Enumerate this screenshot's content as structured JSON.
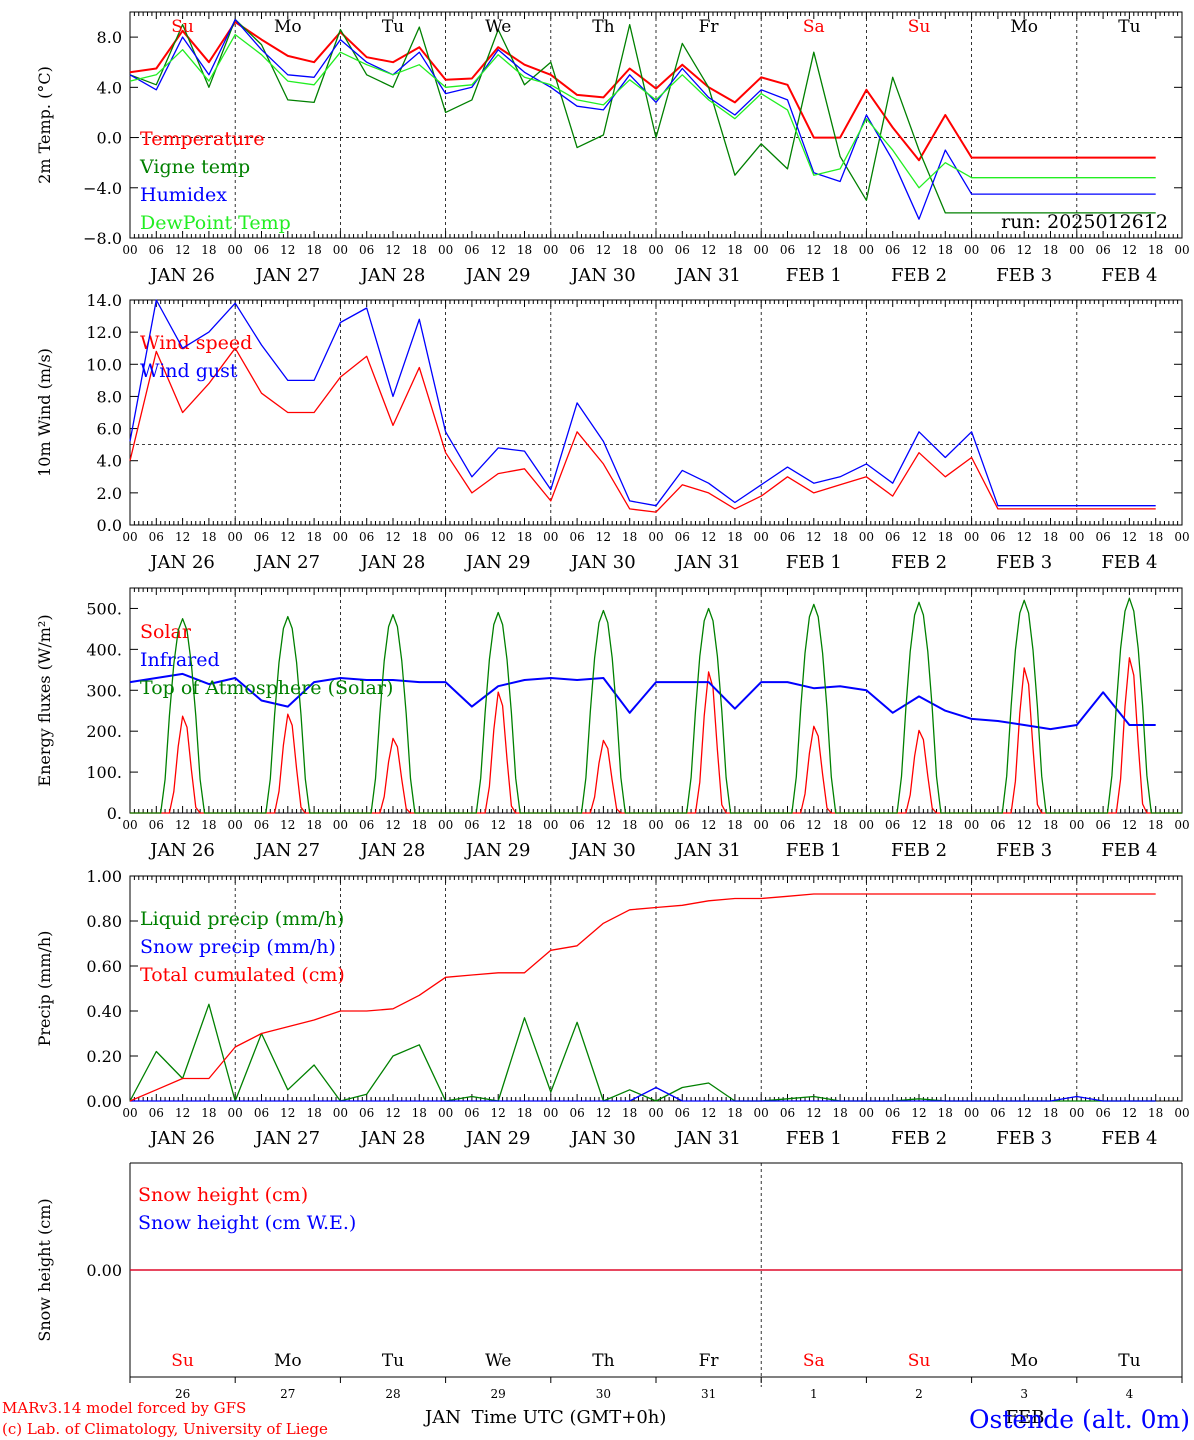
{
  "axis": {
    "hour_labels": [
      "00",
      "06",
      "12",
      "18"
    ],
    "date_labels": [
      "JAN 26",
      "JAN 27",
      "JAN 28",
      "JAN 29",
      "JAN 30",
      "JAN 31",
      "FEB  1",
      "FEB  2",
      "FEB  3",
      "FEB  4"
    ],
    "weekdays": [
      "Su",
      "Mo",
      "Tu",
      "We",
      "Th",
      "Fr",
      "Sa",
      "Su",
      "Mo",
      "Tu"
    ],
    "weekend_indices": [
      0,
      6,
      7
    ],
    "bottom_day_numbers": [
      "26",
      "27",
      "28",
      "29",
      "30",
      "31",
      "1",
      "2",
      "3",
      "4"
    ],
    "time_label": "Time UTC (GMT+0h)",
    "month_left": "JAN",
    "month_right": "FEB"
  },
  "colors": {
    "red": "#ff0000",
    "green": "#008000",
    "blue": "#0000ff",
    "lightgreen": "#22ee22",
    "darkgreen": "#228b22"
  },
  "footer": {
    "model_line": "MARv3.14 model forced by GFS",
    "credit_line": "(c) Lab. of Climatology, University of Liege",
    "station": "Ostende (alt. 0m)"
  },
  "chart_data": [
    {
      "type": "line",
      "ylabel": "2m Temp. (°C)",
      "ylim": [
        -8,
        10
      ],
      "yticks": [
        "8.0",
        "4.0",
        "0.0",
        "−4.0",
        "−8.0"
      ],
      "run_label": "run: 2025012612",
      "x_hours": [
        0,
        6,
        12,
        18,
        24,
        30,
        36,
        42,
        48,
        54,
        60,
        66,
        72,
        78,
        84,
        90,
        96,
        102,
        108,
        114,
        120,
        126,
        132,
        138,
        144,
        150,
        156,
        162,
        168,
        174,
        180,
        186,
        192,
        198,
        204,
        210,
        216,
        222,
        228,
        234
      ],
      "series": [
        {
          "name": "Temperature",
          "color": "red",
          "values": [
            5.2,
            5.5,
            8.5,
            6.0,
            9.2,
            7.8,
            6.5,
            6.0,
            8.4,
            6.4,
            6.0,
            7.2,
            4.6,
            4.7,
            7.2,
            5.8,
            5.0,
            3.4,
            3.2,
            5.5,
            3.9,
            5.8,
            4.0,
            2.8,
            4.8,
            4.2,
            0.0,
            0.0,
            3.8,
            0.8,
            -1.8,
            1.8,
            -1.6,
            -1.6,
            -1.6,
            -1.6,
            -1.6,
            -1.6,
            -1.6,
            -1.6
          ]
        },
        {
          "name": "Vigne temp",
          "color": "green",
          "values": [
            5.0,
            4.2,
            9.0,
            4.0,
            9.4,
            7.4,
            3.0,
            2.8,
            8.6,
            5.0,
            4.0,
            8.8,
            2.0,
            3.0,
            8.6,
            4.2,
            6.0,
            -0.8,
            0.2,
            9.0,
            0.0,
            7.5,
            4.0,
            -3.0,
            -0.5,
            -2.5,
            6.8,
            -1.5,
            -5.0,
            4.8,
            -1.0,
            -6.0,
            -6.0,
            -6.0,
            -6.0,
            -6.0,
            -6.0,
            -6.0,
            -6.0,
            -6.0
          ]
        },
        {
          "name": "Humidex",
          "color": "blue",
          "values": [
            5.0,
            3.8,
            8.0,
            5.0,
            9.4,
            7.0,
            5.0,
            4.8,
            7.8,
            6.0,
            5.0,
            6.8,
            3.5,
            4.0,
            7.0,
            5.2,
            4.0,
            2.5,
            2.2,
            5.0,
            2.8,
            5.5,
            3.2,
            1.8,
            3.8,
            3.0,
            -2.8,
            -3.5,
            1.8,
            -1.8,
            -6.5,
            -1.0,
            -4.5,
            -4.5,
            -4.5,
            -4.5,
            -4.5,
            -4.5,
            -4.5,
            -4.5
          ]
        },
        {
          "name": "DewPoint Temp",
          "color": "lightgreen",
          "values": [
            4.5,
            5.0,
            7.0,
            4.5,
            8.2,
            6.6,
            4.5,
            4.2,
            6.8,
            5.8,
            5.0,
            5.8,
            4.0,
            4.2,
            6.6,
            4.8,
            4.2,
            3.0,
            2.6,
            4.6,
            3.0,
            5.0,
            3.0,
            1.5,
            3.5,
            2.2,
            -3.0,
            -2.5,
            1.5,
            -1.0,
            -4.0,
            -2.0,
            -3.2,
            -3.2,
            -3.2,
            -3.2,
            -3.2,
            -3.2,
            -3.2,
            -3.2
          ]
        }
      ]
    },
    {
      "type": "line",
      "ylabel": "10m Wind (m/s)",
      "ylim": [
        0,
        14
      ],
      "yticks": [
        "14.0",
        "12.0",
        "10.0",
        "8.0",
        "6.0",
        "4.0",
        "2.0",
        "0.0"
      ],
      "x_hours": [
        0,
        6,
        12,
        18,
        24,
        30,
        36,
        42,
        48,
        54,
        60,
        66,
        72,
        78,
        84,
        90,
        96,
        102,
        108,
        114,
        120,
        126,
        132,
        138,
        144,
        150,
        156,
        162,
        168,
        174,
        180,
        186,
        192,
        198,
        204,
        210,
        216,
        222,
        228,
        234
      ],
      "series": [
        {
          "name": "Wind speed",
          "color": "red",
          "values": [
            4.0,
            10.8,
            7.0,
            8.8,
            11.0,
            8.2,
            7.0,
            7.0,
            9.2,
            10.5,
            6.2,
            9.8,
            4.5,
            2.0,
            3.2,
            3.5,
            1.5,
            5.8,
            3.8,
            1.0,
            0.8,
            2.5,
            2.0,
            1.0,
            1.8,
            3.0,
            2.0,
            2.5,
            3.0,
            1.8,
            4.5,
            3.0,
            4.2,
            1.0,
            1.0,
            1.0,
            1.0,
            1.0,
            1.0,
            1.0
          ]
        },
        {
          "name": "Wind gust",
          "color": "blue",
          "values": [
            5.2,
            14.0,
            11.0,
            12.0,
            13.8,
            11.2,
            9.0,
            9.0,
            12.6,
            13.5,
            8.0,
            12.8,
            5.8,
            3.0,
            4.8,
            4.6,
            2.2,
            7.6,
            5.2,
            1.5,
            1.2,
            3.4,
            2.6,
            1.4,
            2.5,
            3.6,
            2.6,
            3.0,
            3.8,
            2.6,
            5.8,
            4.2,
            5.8,
            1.2,
            1.2,
            1.2,
            1.2,
            1.2,
            1.2,
            1.2
          ]
        }
      ]
    },
    {
      "type": "line",
      "ylabel": "Energy fluxes (W/m²)",
      "ylim": [
        0,
        550
      ],
      "yticks": [
        "500.",
        "400.",
        "300.",
        "200.",
        "100.",
        "0."
      ],
      "x_hours": [
        0,
        6,
        12,
        18,
        24,
        30,
        36,
        42,
        48,
        54,
        60,
        66,
        72,
        78,
        84,
        90,
        96,
        102,
        108,
        114,
        120,
        126,
        132,
        138,
        144,
        150,
        156,
        162,
        168,
        174,
        180,
        186,
        192,
        198,
        204,
        210,
        216,
        222,
        228,
        234
      ],
      "series": [
        {
          "name": "Solar",
          "color": "red",
          "daily_peaks": [
            240,
            245,
            185,
            300,
            180,
            350,
            215,
            205,
            360,
            385
          ]
        },
        {
          "name": "Infrared",
          "color": "blue",
          "values": [
            320,
            330,
            340,
            315,
            330,
            275,
            260,
            320,
            330,
            325,
            325,
            320,
            320,
            260,
            310,
            325,
            330,
            325,
            330,
            245,
            320,
            320,
            320,
            255,
            320,
            320,
            305,
            310,
            300,
            245,
            285,
            250,
            230,
            225,
            215,
            205,
            215,
            295,
            215,
            215
          ]
        },
        {
          "name": "Top of Atmosphere (Solar)",
          "color": "green",
          "daily_peaks": [
            475,
            480,
            485,
            490,
            495,
            500,
            510,
            515,
            520,
            525
          ]
        }
      ]
    },
    {
      "type": "line",
      "ylabel": "Precip (mm/h)",
      "ylim": [
        0,
        1
      ],
      "yticks": [
        "1.00",
        "0.80",
        "0.60",
        "0.40",
        "0.20",
        "0.00"
      ],
      "x_hours": [
        0,
        6,
        12,
        18,
        24,
        30,
        36,
        42,
        48,
        54,
        60,
        66,
        72,
        78,
        84,
        90,
        96,
        102,
        108,
        114,
        120,
        126,
        132,
        138,
        144,
        150,
        156,
        162,
        168,
        174,
        180,
        186,
        192,
        198,
        204,
        210,
        216,
        222,
        228,
        234
      ],
      "series": [
        {
          "name": "Liquid precip (mm/h)",
          "color": "green",
          "values": [
            0.0,
            0.22,
            0.1,
            0.43,
            0.0,
            0.3,
            0.05,
            0.16,
            0.0,
            0.03,
            0.2,
            0.25,
            0.0,
            0.02,
            0.0,
            0.37,
            0.04,
            0.35,
            0.0,
            0.05,
            0.0,
            0.06,
            0.08,
            0.0,
            0.0,
            0.01,
            0.02,
            0.0,
            0.0,
            0.0,
            0.01,
            0.0,
            0.0,
            0.0,
            0.0,
            0.0,
            0.0,
            0.0,
            0.0,
            0.0
          ]
        },
        {
          "name": "Snow precip (mm/h)",
          "color": "blue",
          "values": [
            0,
            0,
            0,
            0,
            0,
            0,
            0,
            0,
            0,
            0,
            0,
            0,
            0,
            0,
            0,
            0,
            0,
            0,
            0,
            0,
            0.06,
            0,
            0,
            0,
            0,
            0,
            0,
            0,
            0,
            0,
            0,
            0,
            0,
            0,
            0,
            0,
            0.02,
            0,
            0,
            0
          ]
        },
        {
          "name": "Total cumulated (cm)",
          "color": "red",
          "values": [
            0.0,
            0.05,
            0.1,
            0.1,
            0.24,
            0.3,
            0.33,
            0.36,
            0.4,
            0.4,
            0.41,
            0.47,
            0.55,
            0.56,
            0.57,
            0.57,
            0.67,
            0.69,
            0.79,
            0.85,
            0.86,
            0.87,
            0.89,
            0.9,
            0.9,
            0.91,
            0.92,
            0.92,
            0.92,
            0.92,
            0.92,
            0.92,
            0.92,
            0.92,
            0.92,
            0.92,
            0.92,
            0.92,
            0.92,
            0.92
          ]
        }
      ]
    },
    {
      "type": "line",
      "ylabel": "Snow height (cm)",
      "ylim": [
        -1,
        1
      ],
      "yticks": [
        "0.00"
      ],
      "series": [
        {
          "name": "Snow height (cm)",
          "color": "red",
          "values": [
            0,
            0
          ]
        },
        {
          "name": "Snow height (cm W.E.)",
          "color": "blue",
          "values": [
            0,
            0
          ]
        }
      ]
    }
  ]
}
